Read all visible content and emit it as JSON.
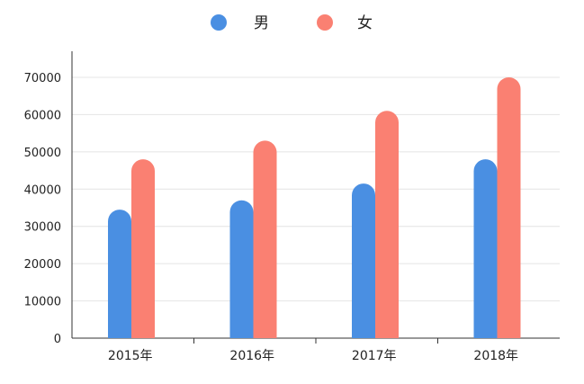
{
  "chart_data": {
    "type": "bar",
    "title": "",
    "xlabel": "",
    "ylabel": "",
    "categories": [
      "2015年",
      "2016年",
      "2017年",
      "2018年"
    ],
    "series": [
      {
        "name": "男",
        "values": [
          34500,
          37000,
          41500,
          48000
        ]
      },
      {
        "name": "女",
        "values": [
          48000,
          53000,
          61000,
          70000
        ]
      }
    ],
    "ylim": [
      0,
      77000
    ],
    "yticks": [
      0,
      10000,
      20000,
      30000,
      40000,
      50000,
      60000,
      70000
    ],
    "legend": "top-center",
    "grid": true,
    "colors": {
      "series": [
        "#4a8fe2",
        "#fa8072"
      ],
      "axis": "#333333",
      "grid": "#e4e4e4",
      "text": "#222222"
    }
  }
}
